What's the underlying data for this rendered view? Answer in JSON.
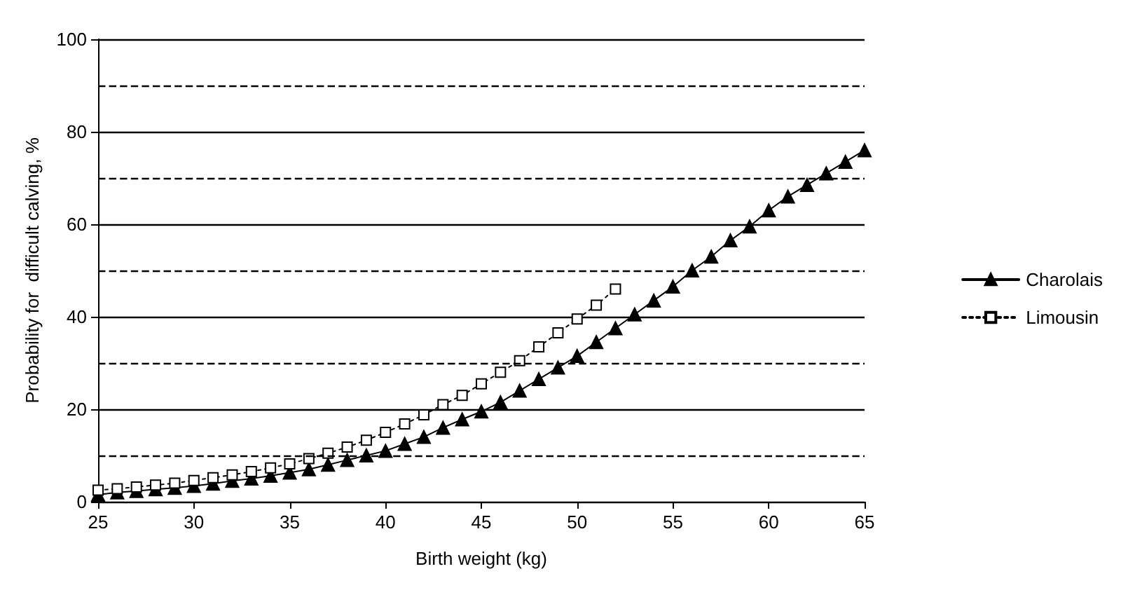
{
  "chart_data": {
    "type": "line",
    "xlabel": "Birth weight (kg)",
    "ylabel": "Probability for  difficult calving, %",
    "x": [
      25,
      26,
      27,
      28,
      29,
      30,
      31,
      32,
      33,
      34,
      35,
      36,
      37,
      38,
      39,
      40,
      41,
      42,
      43,
      44,
      45,
      46,
      47,
      48,
      49,
      50,
      51,
      52,
      53,
      54,
      55,
      56,
      57,
      58,
      59,
      60,
      61,
      62,
      63,
      64,
      65
    ],
    "series": [
      {
        "name": "Charolais",
        "color": "#000000",
        "marker": "triangle",
        "line_style": "solid",
        "values": [
          1.5,
          2,
          2.3,
          2.7,
          3,
          3.4,
          3.9,
          4.5,
          5,
          5.6,
          6.3,
          7,
          8,
          9,
          10,
          11,
          12.5,
          14,
          16,
          17.8,
          19.5,
          21.5,
          24,
          26.5,
          29,
          31.5,
          34.5,
          37.5,
          40.5,
          43.5,
          46.5,
          50,
          53,
          56.5,
          59.5,
          63,
          66,
          68.5,
          71,
          73.5,
          76
        ]
      },
      {
        "name": "Limousin",
        "color": "#000000",
        "marker": "square",
        "line_style": "dotted",
        "values": [
          2.5,
          2.8,
          3.2,
          3.6,
          4,
          4.6,
          5.2,
          5.8,
          6.5,
          7.3,
          8.2,
          9.3,
          10.5,
          11.8,
          13.3,
          15,
          16.8,
          18.8,
          21,
          23,
          25.5,
          28,
          30.5,
          33.5,
          36.5,
          39.5,
          42.5,
          46,
          null,
          null,
          null,
          null,
          null,
          null,
          null,
          null,
          null,
          null,
          null,
          null,
          null
        ]
      }
    ],
    "xlim": [
      25,
      65
    ],
    "xticks": [
      25,
      30,
      35,
      40,
      45,
      50,
      55,
      60,
      65
    ],
    "ylim": [
      0,
      100
    ],
    "yticks": [
      0,
      20,
      40,
      60,
      80,
      100
    ],
    "grid": "y",
    "legend": "right",
    "ref_lines": [
      {
        "axis": "y",
        "value": 10,
        "line_style": "dashed"
      },
      {
        "axis": "y",
        "value": 30,
        "line_style": "dashed"
      },
      {
        "axis": "y",
        "value": 50,
        "line_style": "dashed"
      },
      {
        "axis": "y",
        "value": 70,
        "line_style": "dashed"
      },
      {
        "axis": "y",
        "value": 90,
        "line_style": "dashed"
      }
    ]
  }
}
